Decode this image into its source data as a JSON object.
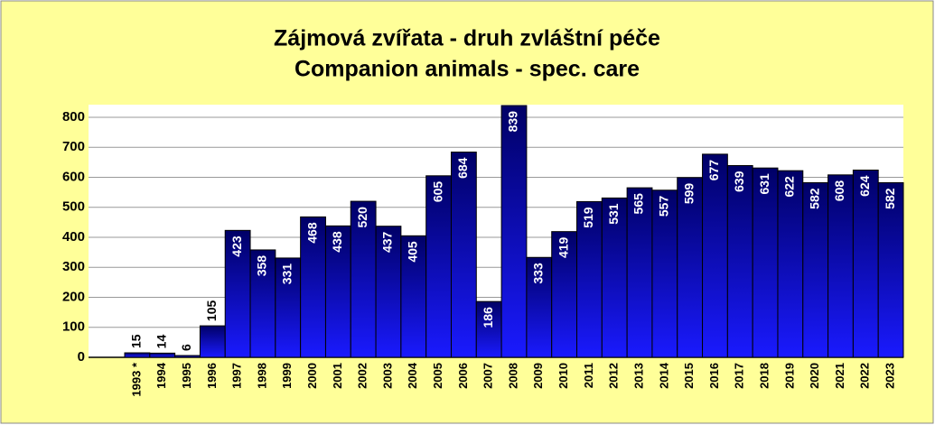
{
  "chart_data": {
    "type": "bar",
    "title": [
      "Zájmová zvířata - druh zvláštní péče",
      "Companion animals - spec. care"
    ],
    "categories": [
      "1993 *",
      "1994",
      "1995",
      "1996",
      "1997",
      "1998",
      "1999",
      "2000",
      "2001",
      "2002",
      "2003",
      "2004",
      "2005",
      "2006",
      "2007",
      "2008",
      "2009",
      "2010",
      "2011",
      "2012",
      "2013",
      "2014",
      "2015",
      "2016",
      "2017",
      "2018",
      "2019",
      "2020",
      "2021",
      "2022",
      "2023"
    ],
    "values": [
      15,
      14,
      6,
      105,
      423,
      358,
      331,
      468,
      438,
      520,
      437,
      405,
      605,
      684,
      186,
      839,
      333,
      419,
      519,
      531,
      565,
      557,
      599,
      677,
      639,
      631,
      622,
      582,
      608,
      624,
      582
    ],
    "color": "#1a1aff",
    "ylim": [
      0,
      842
    ],
    "yticks": [
      0,
      100,
      200,
      300,
      400,
      500,
      600,
      700,
      800
    ],
    "grid": true
  }
}
